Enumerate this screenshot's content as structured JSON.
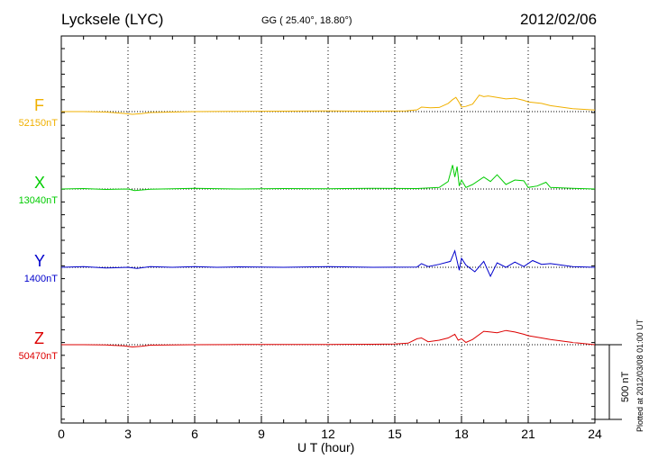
{
  "header": {
    "station": "Lycksele (LYC)",
    "coords": "GG ( 25.40°,  18.80°)",
    "date": "2012/02/06"
  },
  "footer": {
    "plotted": "Plotted at 2012/03/08 01:00 UT"
  },
  "chart_data": {
    "type": "line",
    "xlabel": "U T (hour)",
    "xlim": [
      0,
      24
    ],
    "xticks": [
      "0",
      "3",
      "6",
      "9",
      "12",
      "15",
      "18",
      "21",
      "24"
    ],
    "scale_bar": {
      "label": "500 nT",
      "value_nT": 500
    },
    "grid": "vertical dotted lines every 3 hours",
    "series": [
      {
        "name": "F",
        "baseline": "52150nT",
        "color": "#f0b000",
        "x": [
          0,
          1,
          2,
          2.8,
          3.2,
          3.6,
          4,
          5,
          6,
          8,
          10,
          12,
          14,
          15.5,
          16,
          16.2,
          16.6,
          17,
          17.4,
          17.6,
          17.75,
          17.9,
          18,
          18.2,
          18.5,
          18.8,
          19,
          19.2,
          19.6,
          20,
          20.4,
          20.8,
          21,
          21.6,
          22,
          23,
          24
        ],
        "values": [
          0,
          0,
          -3,
          -12,
          -18,
          -14,
          -6,
          -3,
          0,
          2,
          3,
          4,
          3,
          5,
          12,
          30,
          25,
          28,
          55,
          80,
          95,
          60,
          30,
          35,
          50,
          110,
          100,
          105,
          95,
          85,
          90,
          75,
          65,
          55,
          40,
          20,
          10
        ]
      },
      {
        "name": "X",
        "baseline": "13040nT",
        "color": "#00cc00",
        "x": [
          0,
          1,
          2,
          3,
          3.3,
          4,
          5,
          6,
          8,
          10,
          12,
          14,
          16,
          17,
          17.4,
          17.6,
          17.7,
          17.8,
          17.9,
          18,
          18.2,
          18.5,
          19,
          19.3,
          19.6,
          20,
          20.4,
          20.8,
          21,
          21.4,
          21.8,
          22,
          23,
          24
        ],
        "values": [
          0,
          3,
          -3,
          0,
          -10,
          -2,
          2,
          5,
          0,
          3,
          2,
          5,
          3,
          10,
          50,
          160,
          80,
          150,
          20,
          60,
          10,
          30,
          80,
          50,
          95,
          30,
          60,
          55,
          10,
          20,
          45,
          10,
          5,
          0
        ]
      },
      {
        "name": "Y",
        "baseline": "1400nT",
        "color": "#0000cc",
        "x": [
          0,
          1,
          2,
          3,
          3.4,
          4,
          5,
          6,
          7,
          8,
          10,
          12,
          14,
          16,
          16.2,
          16.5,
          17,
          17.5,
          17.7,
          17.9,
          18,
          18.2,
          18.6,
          19,
          19.3,
          19.6,
          20,
          20.4,
          20.8,
          21.2,
          21.6,
          22,
          23,
          24
        ],
        "values": [
          0,
          5,
          -5,
          0,
          -8,
          5,
          0,
          5,
          0,
          3,
          0,
          4,
          0,
          2,
          25,
          5,
          20,
          40,
          110,
          -20,
          60,
          15,
          -30,
          40,
          -60,
          30,
          0,
          35,
          5,
          45,
          20,
          25,
          5,
          0
        ]
      },
      {
        "name": "Z",
        "baseline": "50470nT",
        "color": "#dd0000",
        "x": [
          0,
          1,
          2,
          2.8,
          3.2,
          3.6,
          4,
          5,
          6,
          8,
          10,
          12,
          14,
          15,
          15.6,
          16,
          16.2,
          16.5,
          17,
          17.4,
          17.7,
          17.85,
          18,
          18.2,
          18.5,
          19,
          19.3,
          19.6,
          20,
          20.4,
          20.8,
          21,
          21.6,
          22,
          23,
          24
        ],
        "values": [
          0,
          0,
          -2,
          -8,
          -15,
          -10,
          -3,
          -1,
          0,
          1,
          2,
          2,
          3,
          5,
          10,
          40,
          45,
          20,
          30,
          45,
          70,
          30,
          40,
          15,
          35,
          90,
          85,
          80,
          95,
          85,
          70,
          60,
          45,
          35,
          15,
          0
        ]
      }
    ]
  }
}
